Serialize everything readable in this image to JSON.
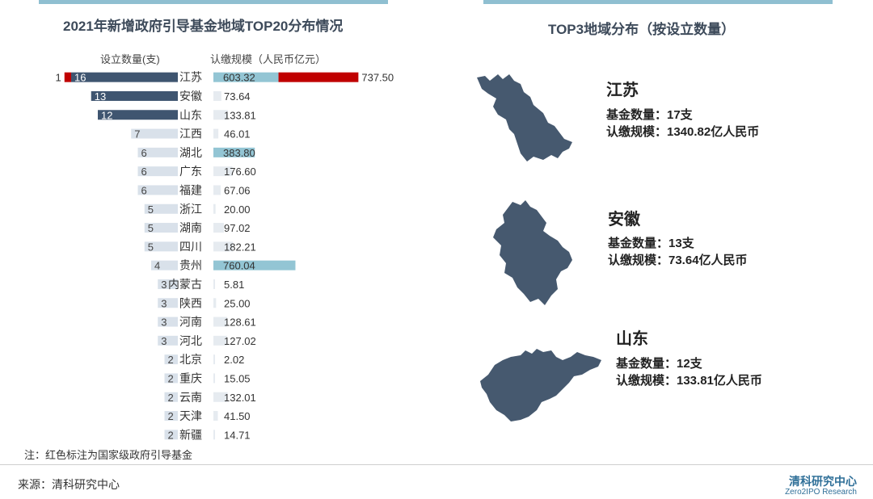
{
  "left_title": "2021年新增政府引导基金地域TOP20分布情况",
  "right_title": "TOP3地域分布（按设立数量）",
  "header_count": "设立数量(支)",
  "header_scale": "认缴规模（人民币亿元）",
  "note": "注：红色标注为国家级政府引导基金",
  "source": "来源：清科研究中心",
  "logo_cn": "清科研究中心",
  "logo_en": "Zero2IPO Research",
  "colors": {
    "count_dark": "#3f5570",
    "count_light": "#d9e1ea",
    "scale_blue": "#93c5d4",
    "scale_light": "#e6ebf0",
    "national_red": "#c00000",
    "map_fill": "#46596f"
  },
  "top3": [
    {
      "name": "江苏",
      "count_line": "基金数量：17支",
      "scale_line": "认缴规模：1340.82亿人民币"
    },
    {
      "name": "安徽",
      "count_line": "基金数量：13支",
      "scale_line": "认缴规模：73.64亿人民币"
    },
    {
      "name": "山东",
      "count_line": "基金数量：12支",
      "scale_line": "认缴规模：133.81亿人民币"
    }
  ],
  "chart_data": {
    "type": "bar",
    "title": "2021年新增政府引导基金地域TOP20分布情况",
    "categories": [
      "江苏",
      "安徽",
      "山东",
      "江西",
      "湖北",
      "广东",
      "福建",
      "浙江",
      "湖南",
      "四川",
      "贵州",
      "内蒙古",
      "陕西",
      "河南",
      "河北",
      "北京",
      "重庆",
      "云南",
      "天津",
      "新疆"
    ],
    "series": [
      {
        "name": "设立数量(支)",
        "values": [
          16,
          13,
          12,
          7,
          6,
          6,
          6,
          5,
          5,
          5,
          4,
          3,
          3,
          3,
          3,
          2,
          2,
          2,
          2,
          2
        ]
      },
      {
        "name": "设立数量(支)-国家级",
        "values": [
          1,
          0,
          0,
          0,
          0,
          0,
          0,
          0,
          0,
          0,
          0,
          0,
          0,
          0,
          0,
          0,
          0,
          0,
          0,
          0
        ]
      },
      {
        "name": "认缴规模（人民币亿元）",
        "values": [
          603.32,
          73.64,
          133.81,
          46.01,
          383.8,
          176.6,
          67.06,
          20.0,
          97.02,
          182.21,
          760.04,
          5.81,
          25.0,
          128.61,
          127.02,
          2.02,
          15.05,
          132.01,
          41.5,
          14.71
        ]
      },
      {
        "name": "认缴规模（人民币亿元）-国家级",
        "values": [
          737.5,
          0,
          0,
          0,
          0,
          0,
          0,
          0,
          0,
          0,
          0,
          0,
          0,
          0,
          0,
          0,
          0,
          0,
          0,
          0
        ]
      }
    ],
    "count_labels": [
      "16",
      "13",
      "12",
      "7",
      "6",
      "6",
      "6",
      "5",
      "5",
      "5",
      "4",
      "3",
      "3",
      "3",
      "3",
      "2",
      "2",
      "2",
      "2",
      "2"
    ],
    "national_count_label": "1",
    "scale_labels": [
      "603.32",
      "73.64",
      "133.81",
      "46.01",
      "383.80",
      "176.60",
      "67.06",
      "20.00",
      "97.02",
      "182.21",
      "760.04",
      "5.81",
      "25.00",
      "128.61",
      "127.02",
      "2.02",
      "15.05",
      "132.01",
      "41.50",
      "14.71"
    ],
    "national_scale_label": "737.50",
    "highlight_dark_rows": 3,
    "highlight_blue_threshold": 300,
    "legend": "none",
    "grid": false
  }
}
